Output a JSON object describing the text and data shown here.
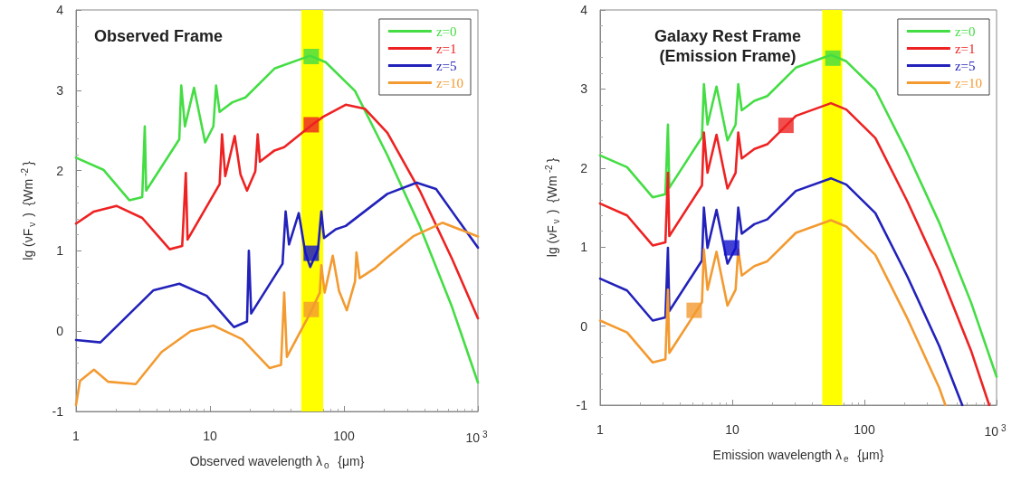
{
  "chart_data": [
    {
      "type": "line",
      "annotations": [
        "Observed Frame"
      ],
      "xlabel": "Observed wavelength λ$_{o}$  {μm}",
      "ylabel": "lg (νF$_{ν}$ )  {Wm$^{-2}$}",
      "log": "x",
      "xlim": [
        1,
        1000
      ],
      "ylim": [
        -1,
        4
      ],
      "xticks": [
        1,
        10,
        100,
        {
          "value": 1000,
          "label": "10$^{3}$"
        }
      ],
      "yticks": [
        -1,
        0,
        1,
        2,
        3,
        4
      ],
      "grid": false,
      "legend": "top right",
      "marker": "none",
      "line_style": "solid",
      "bands": [
        {
          "axis": "x",
          "from": 48,
          "to": 70,
          "color": "#ffff00"
        }
      ],
      "series": [
        {
          "name": "z=0",
          "color": "#44dd44",
          "x": [
            1,
            1.6,
            2.5,
            3.12,
            3.26,
            3.34,
            5.9,
            6.1,
            6.5,
            7.6,
            9.2,
            10.6,
            11.1,
            11.8,
            14.7,
            18.4,
            30.3,
            55.8,
            73,
            121,
            211,
            368,
            641,
            1000
          ],
          "values": [
            2.16,
            2.01,
            1.63,
            1.67,
            2.55,
            1.75,
            2.39,
            3.06,
            2.55,
            3.03,
            2.35,
            2.55,
            3.06,
            2.73,
            2.85,
            2.91,
            3.27,
            3.43,
            3.35,
            2.99,
            2.19,
            1.31,
            0.3,
            -0.64
          ]
        },
        {
          "name": "z=1",
          "color": "#ee2222",
          "x": [
            1,
            1.36,
            2.0,
            3.12,
            5.0,
            6.2,
            6.6,
            6.8,
            11.8,
            12.3,
            13.0,
            15.3,
            16.9,
            18.9,
            21.8,
            22.7,
            23.6,
            30.3,
            35.8,
            55.8,
            70,
            103,
            143,
            211,
            368,
            641,
            1000
          ],
          "values": [
            1.34,
            1.49,
            1.56,
            1.41,
            1.02,
            1.06,
            1.97,
            1.14,
            1.83,
            2.45,
            1.93,
            2.43,
            1.95,
            1.75,
            1.99,
            2.45,
            2.11,
            2.25,
            2.29,
            2.55,
            2.67,
            2.82,
            2.77,
            2.47,
            1.75,
            0.9,
            0.16
          ]
        },
        {
          "name": "z=5",
          "color": "#2222bb",
          "x": [
            1,
            1.52,
            3.79,
            5.9,
            9.45,
            15.1,
            18.9,
            19.5,
            20.3,
            34.8,
            36.7,
            38.9,
            46,
            51.4,
            56,
            64,
            67.8,
            71,
            87,
            103,
            211,
            349,
            487,
            1000
          ],
          "values": [
            -0.11,
            -0.14,
            0.51,
            0.59,
            0.44,
            0.05,
            0.12,
            1.0,
            0.22,
            0.84,
            1.49,
            1.08,
            1.47,
            0.98,
            0.8,
            1.02,
            1.49,
            1.16,
            1.27,
            1.31,
            1.71,
            1.85,
            1.77,
            1.04
          ]
        },
        {
          "name": "z=10",
          "color": "#f39a30",
          "x": [
            1,
            1.07,
            1.36,
            1.74,
            2.79,
            4.35,
            7.16,
            10.6,
            17.4,
            27.9,
            33.9,
            35.8,
            37.5,
            55.8,
            66,
            67.8,
            71.8,
            82.5,
            91.9,
            105,
            121,
            124,
            131,
            169,
            211,
            328,
            543,
            1000
          ],
          "values": [
            -0.92,
            -0.62,
            -0.48,
            -0.63,
            -0.66,
            -0.26,
            0.0,
            0.07,
            -0.1,
            -0.46,
            -0.42,
            0.48,
            -0.32,
            0.22,
            0.48,
            0.82,
            0.48,
            0.94,
            0.5,
            0.26,
            0.62,
            0.98,
            0.66,
            0.78,
            0.92,
            1.18,
            1.35,
            1.18
          ]
        },
        {
          "type": "scatter",
          "marker": "square",
          "x": [
            57,
            57,
            57,
            57
          ],
          "values": [
            3.42,
            2.57,
            0.97,
            0.27
          ],
          "colors": [
            "#44dd44",
            "#ee2222",
            "#1111cc",
            "#f39a30"
          ]
        }
      ]
    },
    {
      "type": "line",
      "annotations": [
        "Galaxy Rest Frame\n(Emission Frame)"
      ],
      "xlabel": "Emission wavelength λ$_{e}$  {μm}",
      "ylabel": "lg (νF$_{ν}$ )  {Wm$^{-2}$}",
      "log": "x",
      "xlim": [
        1,
        1000
      ],
      "ylim": [
        -1,
        4
      ],
      "xticks": [
        1,
        10,
        100,
        {
          "value": 1000,
          "label": "10$^{3}$"
        }
      ],
      "yticks": [
        -1,
        0,
        1,
        2,
        3,
        4
      ],
      "grid": false,
      "legend": "top right",
      "marker": "none",
      "line_style": "solid",
      "bands": [
        {
          "axis": "x",
          "from": 48,
          "to": 68,
          "color": "#ffff00"
        }
      ],
      "series": [
        {
          "name": "z=0",
          "color": "#44dd44",
          "x": [
            1,
            1.6,
            2.5,
            3.12,
            3.26,
            3.34,
            5.9,
            6.1,
            6.5,
            7.6,
            9.2,
            10.6,
            11.1,
            11.8,
            14.7,
            18.4,
            30.3,
            55.8,
            73,
            121,
            211,
            368,
            641,
            1000
          ],
          "values": [
            2.16,
            2.01,
            1.63,
            1.67,
            2.55,
            1.75,
            2.39,
            3.06,
            2.55,
            3.03,
            2.35,
            2.55,
            3.06,
            2.73,
            2.85,
            2.91,
            3.27,
            3.43,
            3.35,
            2.99,
            2.19,
            1.31,
            0.3,
            -0.64
          ]
        },
        {
          "name": "z=1",
          "color": "#ee2222",
          "x": [
            1,
            1.6,
            2.5,
            3.12,
            3.26,
            3.34,
            5.9,
            6.1,
            6.5,
            7.6,
            9.2,
            10.6,
            11.1,
            11.8,
            14.7,
            18.4,
            30.3,
            55.8,
            73,
            121,
            211,
            368,
            641,
            880
          ],
          "values": [
            1.55,
            1.4,
            1.02,
            1.06,
            1.94,
            1.14,
            1.78,
            2.45,
            1.94,
            2.42,
            1.74,
            1.94,
            2.45,
            2.12,
            2.24,
            2.3,
            2.66,
            2.82,
            2.74,
            2.38,
            1.58,
            0.7,
            -0.31,
            -1
          ]
        },
        {
          "name": "z=5",
          "color": "#2222bb",
          "x": [
            1,
            1.6,
            2.5,
            3.12,
            3.26,
            3.34,
            5.9,
            6.1,
            6.5,
            7.6,
            9.2,
            10.6,
            11.1,
            11.8,
            14.7,
            18.4,
            30.3,
            55.8,
            73,
            121,
            211,
            368,
            550
          ],
          "values": [
            0.6,
            0.45,
            0.07,
            0.11,
            0.99,
            0.19,
            0.83,
            1.5,
            0.99,
            1.47,
            0.79,
            0.99,
            1.5,
            1.17,
            1.29,
            1.35,
            1.71,
            1.87,
            1.79,
            1.43,
            0.63,
            -0.25,
            -1
          ]
        },
        {
          "name": "z=10",
          "color": "#f39a30",
          "x": [
            1,
            1.6,
            2.5,
            3.12,
            3.26,
            3.34,
            5.9,
            6.1,
            6.5,
            7.6,
            9.2,
            10.6,
            11.1,
            11.8,
            14.7,
            18.4,
            30.3,
            55.8,
            73,
            121,
            211,
            368,
            410
          ],
          "values": [
            0.07,
            -0.08,
            -0.46,
            -0.42,
            0.46,
            -0.34,
            0.3,
            0.97,
            0.46,
            0.94,
            0.26,
            0.46,
            0.97,
            0.64,
            0.76,
            0.82,
            1.18,
            1.34,
            1.26,
            0.9,
            0.1,
            -0.78,
            -1
          ]
        },
        {
          "type": "scatter",
          "marker": "square",
          "x": [
            57.7,
            25.5,
            9.9,
            5.15
          ],
          "values": [
            3.39,
            2.54,
            0.99,
            0.2
          ],
          "colors": [
            "#44dd44",
            "#ee2222",
            "#1111cc",
            "#f39a30"
          ]
        }
      ]
    }
  ]
}
